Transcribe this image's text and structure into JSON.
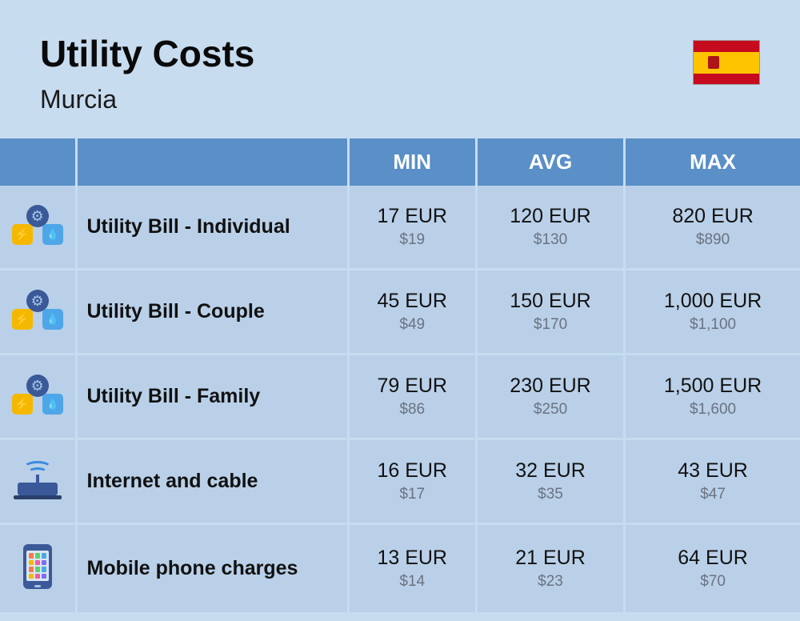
{
  "header": {
    "title": "Utility Costs",
    "subtitle": "Murcia"
  },
  "columns": {
    "min": "MIN",
    "avg": "AVG",
    "max": "MAX"
  },
  "rows": [
    {
      "icon": "utility",
      "label": "Utility Bill - Individual",
      "min_eur": "17 EUR",
      "min_usd": "$19",
      "avg_eur": "120 EUR",
      "avg_usd": "$130",
      "max_eur": "820 EUR",
      "max_usd": "$890"
    },
    {
      "icon": "utility",
      "label": "Utility Bill - Couple",
      "min_eur": "45 EUR",
      "min_usd": "$49",
      "avg_eur": "150 EUR",
      "avg_usd": "$170",
      "max_eur": "1,000 EUR",
      "max_usd": "$1,100"
    },
    {
      "icon": "utility",
      "label": "Utility Bill - Family",
      "min_eur": "79 EUR",
      "min_usd": "$86",
      "avg_eur": "230 EUR",
      "avg_usd": "$250",
      "max_eur": "1,500 EUR",
      "max_usd": "$1,600"
    },
    {
      "icon": "router",
      "label": "Internet and cable",
      "min_eur": "16 EUR",
      "min_usd": "$17",
      "avg_eur": "32 EUR",
      "avg_usd": "$35",
      "max_eur": "43 EUR",
      "max_usd": "$47"
    },
    {
      "icon": "phone",
      "label": "Mobile phone charges",
      "min_eur": "13 EUR",
      "min_usd": "$14",
      "avg_eur": "21 EUR",
      "avg_usd": "$23",
      "max_eur": "64 EUR",
      "max_usd": "$70"
    }
  ],
  "colors": {
    "page_bg": "#c8dcf0",
    "header_bg": "#5a8fc7",
    "row_bg": "#b9d0e8",
    "text_primary": "#111111",
    "text_secondary": "#6b7280",
    "flag_red": "#c60b1e",
    "flag_yellow": "#ffc400"
  },
  "phone_app_colors": [
    "#f77b4a",
    "#5ad16b",
    "#4da6e8",
    "#f5b800",
    "#ef5b9c",
    "#7a6ff0",
    "#f77b4a",
    "#5ad16b",
    "#4da6e8",
    "#f5b800",
    "#ef5b9c",
    "#7a6ff0"
  ]
}
